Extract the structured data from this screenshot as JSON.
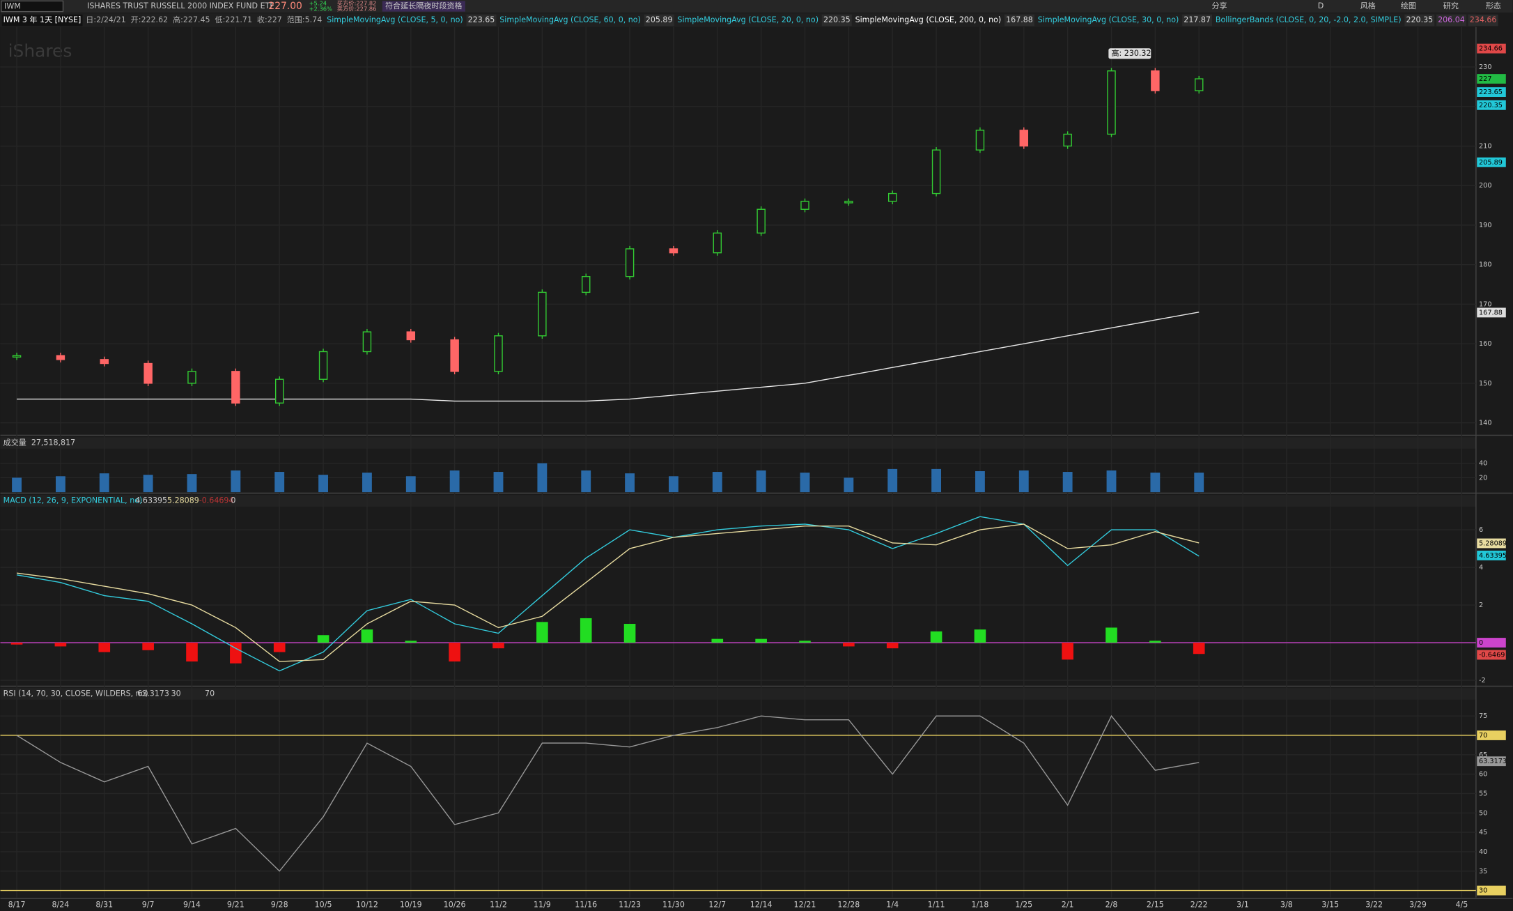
{
  "toolbar": {
    "symbol": "IWM",
    "name": "ISHARES TRUST RUSSELL 2000 INDEX FUND ETF",
    "last": "227.00",
    "change": "+5.24",
    "change_pct": "+2.36%",
    "bid": "买方价:227.82",
    "ask": "卖方价:227.86",
    "note": "符合延长隔夜时段资格",
    "buttons": [
      "分享",
      "风格",
      "绘图",
      "研究",
      "形态"
    ],
    "period": "D"
  },
  "info": [
    "IWM 3 年 1天 [NYSE]",
    "日:2/24/21",
    "开:222.62",
    "高:227.45",
    "低:221.71",
    "收:227",
    "范围:5.74"
  ],
  "studies": [
    {
      "label": "SimpleMovingAvg (CLOSE, 5, 0, no)",
      "values": [
        "223.65"
      ],
      "color": "#33ccdd"
    },
    {
      "label": "SimpleMovingAvg (CLOSE, 60, 0, no)",
      "values": [
        "205.89"
      ],
      "color": "#33ccdd"
    },
    {
      "label": "SimpleMovingAvg (CLOSE, 20, 0, no)",
      "values": [
        "220.35"
      ],
      "color": "#33ccdd"
    },
    {
      "label": "SimpleMovingAvg (CLOSE, 200, 0, no)",
      "values": [
        "167.88"
      ],
      "color": "#ffffff"
    },
    {
      "label": "SimpleMovingAvg (CLOSE, 30, 0, no)",
      "values": [
        "217.87"
      ],
      "color": "#33ccdd"
    },
    {
      "label": "BollingerBands (CLOSE, 0, 20, -2.0, 2.0, SIMPLE)",
      "values": [
        "220.35",
        "206.04",
        "234.66"
      ],
      "color": "#33ccdd"
    }
  ],
  "dates": [
    "8/17",
    "8/24",
    "8/31",
    "9/7",
    "9/14",
    "9/21",
    "9/28",
    "10/5",
    "10/12",
    "10/19",
    "10/26",
    "11/2",
    "11/9",
    "11/16",
    "11/23",
    "11/30",
    "12/7",
    "12/14",
    "12/21",
    "12/28",
    "1/4",
    "1/11",
    "1/18",
    "1/25",
    "2/1",
    "2/8",
    "2/15",
    "2/22",
    "3/1",
    "3/8",
    "3/15",
    "3/22",
    "3/29",
    "4/5"
  ],
  "price": {
    "close": [
      157,
      156,
      155,
      150,
      153,
      145,
      151,
      158,
      163,
      161,
      153,
      162,
      173,
      177,
      184,
      183,
      188,
      194,
      196,
      196,
      198,
      209,
      214,
      210,
      213,
      229,
      224,
      227
    ],
    "sma200": [
      146,
      146,
      146,
      146,
      146,
      146,
      146,
      146,
      146,
      146,
      145.5,
      145.5,
      145.5,
      145.5,
      146,
      147,
      148,
      149,
      150,
      152,
      154,
      156,
      158,
      160,
      162,
      164,
      166,
      168
    ],
    "ylim": [
      137.1,
      240.1
    ],
    "yticks": [
      140,
      150,
      160,
      170,
      180,
      190,
      200,
      210,
      220,
      230
    ],
    "right_labels": [
      {
        "value": 234.66,
        "color": "#e04848"
      },
      {
        "value": 227,
        "color": "#22bb44"
      },
      {
        "value": 223.65,
        "color": "#22c8d8"
      },
      {
        "value": 220.35,
        "color": "#22c8d8"
      },
      {
        "value": 205.89,
        "color": "#22c8d8"
      },
      {
        "value": 167.88,
        "color": "#dddddd"
      }
    ],
    "annotation": "高: 230.32"
  },
  "volume": {
    "title": "成交量",
    "value": "27,518,817",
    "values": [
      20,
      22,
      26,
      24,
      25,
      30,
      28,
      24,
      27,
      22,
      30,
      28,
      40,
      30,
      26,
      22,
      28,
      30,
      27,
      20,
      32,
      32,
      29,
      30,
      28,
      30,
      27,
      27
    ],
    "ylim": [
      0,
      60
    ],
    "yticks": [
      20,
      40
    ],
    "color": "#2a6aa8"
  },
  "macd": {
    "title": "MACD (12, 26, 9, EXPONENTIAL, no)",
    "legend": [
      "4.63395",
      "5.28089",
      "-0.64694",
      "0"
    ],
    "value": [
      3.6,
      3.2,
      2.5,
      2.2,
      1.0,
      -0.3,
      -1.5,
      -0.5,
      1.7,
      2.3,
      1.0,
      0.5,
      2.5,
      4.5,
      6.0,
      5.6,
      6.0,
      6.2,
      6.3,
      6.0,
      5.0,
      5.8,
      6.7,
      6.3,
      4.1,
      6.0,
      6.0,
      4.6
    ],
    "signal": [
      3.7,
      3.4,
      3.0,
      2.6,
      2.0,
      0.8,
      -1.0,
      -0.9,
      1.0,
      2.2,
      2.0,
      0.8,
      1.4,
      3.2,
      5.0,
      5.6,
      5.8,
      6.0,
      6.2,
      6.2,
      5.3,
      5.2,
      6.0,
      6.3,
      5.0,
      5.2,
      5.9,
      5.3
    ],
    "hist": [
      -0.1,
      -0.2,
      -0.5,
      -0.4,
      -1.0,
      -1.1,
      -0.5,
      0.4,
      0.7,
      0.1,
      -1.0,
      -0.3,
      1.1,
      1.3,
      1.0,
      0.0,
      0.2,
      0.2,
      0.1,
      -0.2,
      -0.3,
      0.6,
      0.7,
      0.0,
      -0.9,
      0.8,
      0.1,
      -0.6
    ],
    "ylim": [
      -2.26,
      7.23
    ],
    "yticks": [
      -2,
      0,
      2,
      4,
      6
    ],
    "right_labels": [
      {
        "value": 5.28089,
        "color": "#e8dca0"
      },
      {
        "value": 4.63395,
        "color": "#22c8d8"
      },
      {
        "value": 0,
        "color": "#cc44cc"
      },
      {
        "value": -0.6469,
        "color": "#e04848"
      }
    ]
  },
  "rsi": {
    "title": "RSI (14, 70, 30, CLOSE, WILDERS, no)",
    "legend": [
      "63.3173",
      "30",
      "70"
    ],
    "values": [
      70,
      63,
      58,
      62,
      42,
      46,
      35,
      49,
      68,
      62,
      47,
      50,
      68,
      68,
      67,
      70,
      72,
      75,
      74,
      74,
      60,
      75,
      75,
      68,
      52,
      75,
      61,
      63
    ],
    "ylim": [
      28.2,
      79.2
    ],
    "yticks": [
      30,
      35,
      40,
      45,
      50,
      55,
      60,
      65,
      70,
      75
    ],
    "right_labels": [
      {
        "value": 70,
        "color": "#e8d060"
      },
      {
        "value": 63.3173,
        "color": "#999999"
      },
      {
        "value": 30,
        "color": "#e8d060"
      }
    ]
  }
}
